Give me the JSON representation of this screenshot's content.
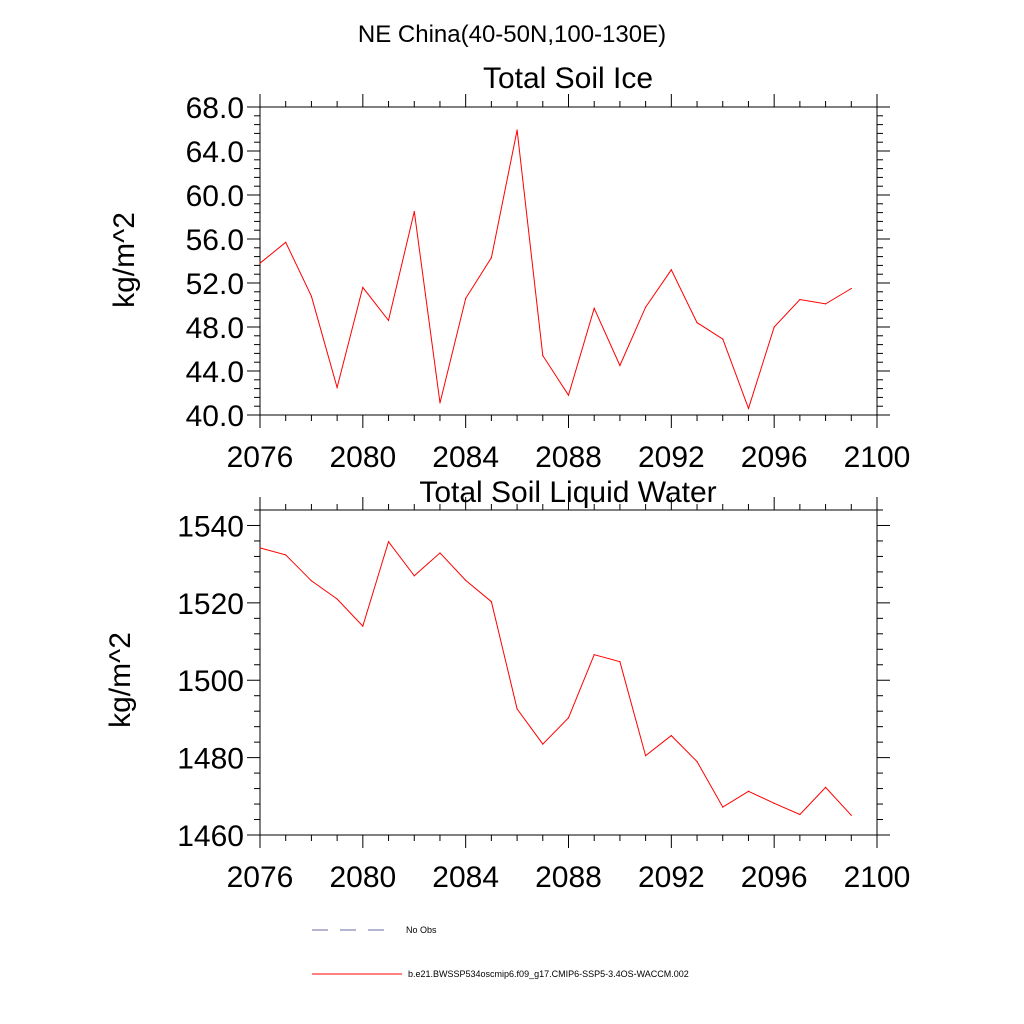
{
  "main_title": "NE China(40-50N,100-130E)",
  "colors": {
    "series": "#ff0000",
    "obs": "#6a6aa8",
    "axis": "#000000"
  },
  "chart_data": [
    {
      "type": "line",
      "title": "Total Soil Ice",
      "ylabel": "kg/m^2",
      "xlabel": "",
      "xlim": [
        2076,
        2100
      ],
      "ylim": [
        40,
        68
      ],
      "x_ticks": [
        2076,
        2080,
        2084,
        2088,
        2092,
        2096,
        2100
      ],
      "x_tick_labels": [
        "2076",
        "2080",
        "2084",
        "2088",
        "2092",
        "2096",
        "2100"
      ],
      "y_ticks": [
        40,
        44,
        48,
        52,
        56,
        60,
        64,
        68
      ],
      "y_tick_labels": [
        "40.0",
        "44.0",
        "48.0",
        "52.0",
        "56.0",
        "60.0",
        "64.0",
        "68.0"
      ],
      "x": [
        2076,
        2077,
        2078,
        2079,
        2080,
        2081,
        2082,
        2083,
        2084,
        2085,
        2086,
        2087,
        2088,
        2089,
        2090,
        2091,
        2092,
        2093,
        2094,
        2095,
        2096,
        2097,
        2098,
        2099
      ],
      "series": [
        {
          "values": [
            53.8,
            55.7,
            50.8,
            42.5,
            51.6,
            48.6,
            58.5,
            41.1,
            50.6,
            54.3,
            65.9,
            45.4,
            41.8,
            49.7,
            44.5,
            49.8,
            53.2,
            48.4,
            46.9,
            40.6,
            48.0,
            50.5,
            50.1,
            51.5
          ]
        }
      ]
    },
    {
      "type": "line",
      "title": "Total Soil Liquid Water",
      "ylabel": "kg/m^2",
      "xlabel": "",
      "xlim": [
        2076,
        2100
      ],
      "ylim": [
        1460,
        1544
      ],
      "x_ticks": [
        2076,
        2080,
        2084,
        2088,
        2092,
        2096,
        2100
      ],
      "x_tick_labels": [
        "2076",
        "2080",
        "2084",
        "2088",
        "2092",
        "2096",
        "2100"
      ],
      "y_ticks": [
        1460,
        1480,
        1500,
        1520,
        1540
      ],
      "y_tick_labels": [
        "1460",
        "1480",
        "1500",
        "1520",
        "1540"
      ],
      "x": [
        2076,
        2077,
        2078,
        2079,
        2080,
        2081,
        2082,
        2083,
        2084,
        2085,
        2086,
        2087,
        2088,
        2089,
        2090,
        2091,
        2092,
        2093,
        2094,
        2095,
        2096,
        2097,
        2098,
        2099
      ],
      "series": [
        {
          "values": [
            1534.2,
            1532.4,
            1525.7,
            1521.0,
            1514.0,
            1535.8,
            1527.0,
            1532.9,
            1525.8,
            1520.3,
            1492.6,
            1483.5,
            1490.3,
            1506.6,
            1504.8,
            1480.5,
            1485.7,
            1479.0,
            1467.2,
            1471.3,
            1468.2,
            1465.3,
            1472.3,
            1465.1
          ]
        }
      ]
    }
  ],
  "legend": {
    "obs_label": "No Obs",
    "model_label": "b.e21.BWSSP534oscmip6.f09_g17.CMIP6-SSP5-3.4OS-WACCM.002"
  }
}
